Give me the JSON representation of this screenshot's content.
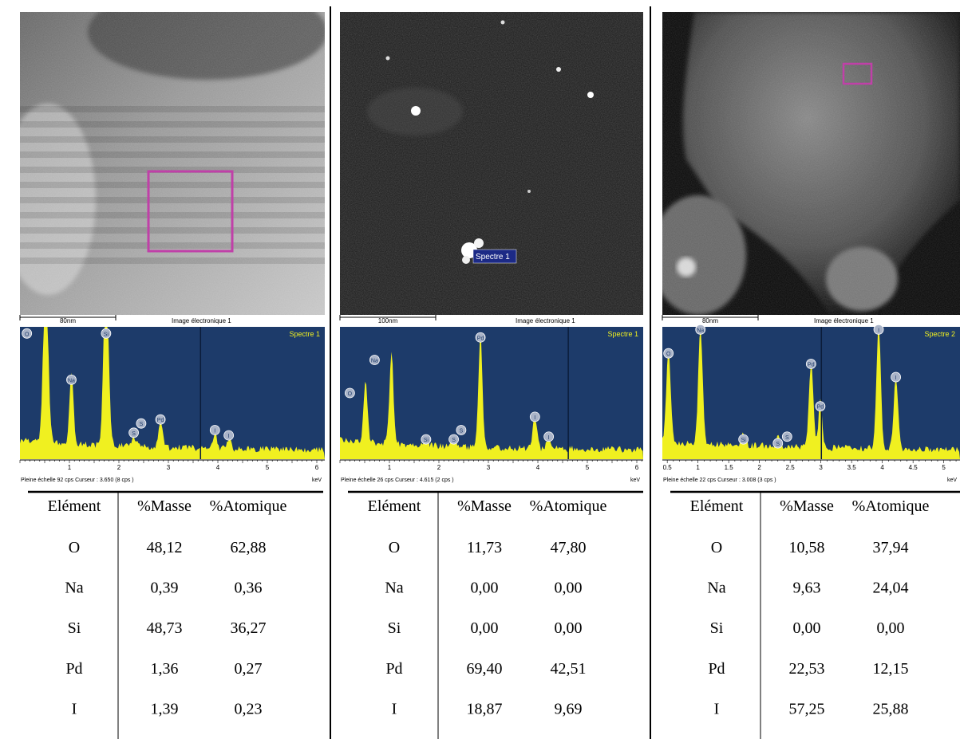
{
  "panels": [
    {
      "image": {
        "scale_bar": "80nm",
        "caption": "Image électronique 1"
      },
      "spectrum": {
        "name": "Spectre 1",
        "peak_labels": [
          "O",
          "Si",
          "Na",
          "S",
          "S",
          "Pd",
          "I",
          "I"
        ],
        "axis_ticks": [
          "1",
          "2",
          "3",
          "4",
          "5",
          "6"
        ],
        "axis_unit": "keV",
        "footer": "Pleine échelle 92 cps  Curseur : 3.650  (8 cps )"
      },
      "table": {
        "headers": [
          "Elément",
          "%Masse",
          "%Atomique"
        ],
        "rows": [
          [
            "O",
            "48,12",
            "62,88"
          ],
          [
            "Na",
            "0,39",
            "0,36"
          ],
          [
            "Si",
            "48,73",
            "36,27"
          ],
          [
            "Pd",
            "1,36",
            "0,27"
          ],
          [
            "I",
            "1,39",
            "0,23"
          ]
        ]
      }
    },
    {
      "image": {
        "scale_bar": "100nm",
        "caption": "Image électronique 1",
        "marker_label": "Spectre 1"
      },
      "spectrum": {
        "name": "Spectre 1",
        "peak_labels": [
          "O",
          "Na",
          "Si",
          "S",
          "S",
          "Pd",
          "I",
          "I"
        ],
        "axis_ticks": [
          "1",
          "2",
          "3",
          "4",
          "5",
          "6"
        ],
        "axis_unit": "keV",
        "footer": "Pleine échelle 26 cps  Curseur : 4.615  (2 cps )"
      },
      "table": {
        "headers": [
          "Elément",
          "%Masse",
          "%Atomique"
        ],
        "rows": [
          [
            "O",
            "11,73",
            "47,80"
          ],
          [
            "Na",
            "0,00",
            "0,00"
          ],
          [
            "Si",
            "0,00",
            "0,00"
          ],
          [
            "Pd",
            "69,40",
            "42,51"
          ],
          [
            "I",
            "18,87",
            "9,69"
          ]
        ]
      }
    },
    {
      "image": {
        "scale_bar": "80nm",
        "caption": "Image électronique 1"
      },
      "spectrum": {
        "name": "Spectre 2",
        "peak_labels": [
          "O",
          "Na",
          "Si",
          "S",
          "S",
          "Pd",
          "Pd",
          "I",
          "I"
        ],
        "axis_ticks": [
          "0.5",
          "1",
          "1.5",
          "2",
          "2.5",
          "3",
          "3.5",
          "4",
          "4.5",
          "5"
        ],
        "axis_unit": "keV",
        "footer": "Pleine échelle 22 cps  Curseur : 3.008  (3 cps )"
      },
      "table": {
        "headers": [
          "Elément",
          "%Masse",
          "%Atomique"
        ],
        "rows": [
          [
            "O",
            "10,58",
            "37,94"
          ],
          [
            "Na",
            "9,63",
            "24,04"
          ],
          [
            "Si",
            "0,00",
            "0,00"
          ],
          [
            "Pd",
            "22,53",
            "12,15"
          ],
          [
            "I",
            "57,25",
            "25,88"
          ]
        ]
      }
    }
  ]
}
